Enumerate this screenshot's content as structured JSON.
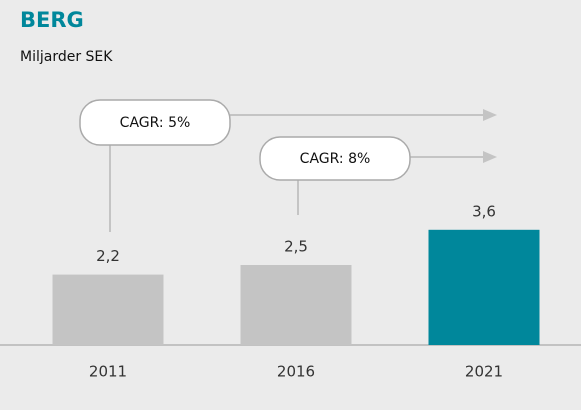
{
  "chart_data": {
    "type": "bar",
    "title": "BERG",
    "subtitle": "Miljarder SEK",
    "categories": [
      "2011",
      "2016",
      "2021"
    ],
    "values": [
      2.2,
      2.5,
      3.6
    ],
    "value_labels": [
      "2,2",
      "2,5",
      "3,6"
    ],
    "colors": [
      "#c4c4c4",
      "#c4c4c4",
      "#00879b"
    ],
    "annotations": [
      "CAGR: 5%",
      "CAGR: 8%"
    ]
  }
}
